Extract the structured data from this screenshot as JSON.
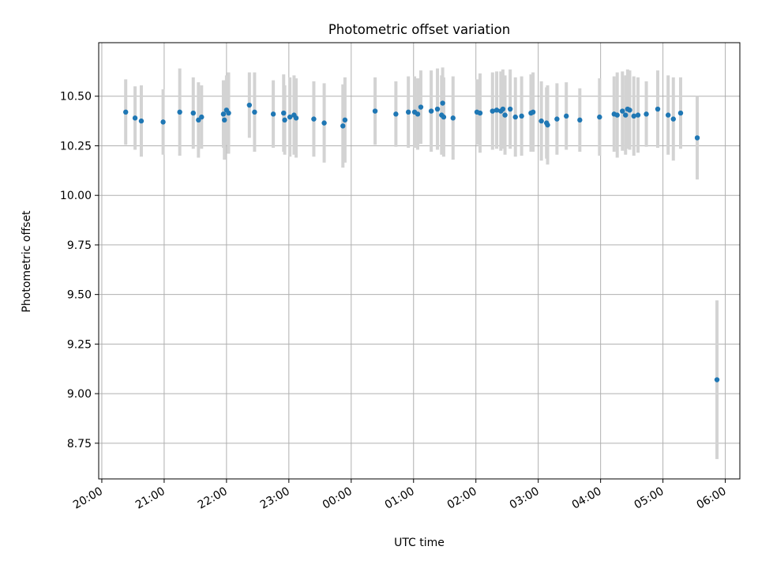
{
  "chart_data": {
    "type": "scatter",
    "title": "Photometric offset variation",
    "xlabel": "UTC time",
    "ylabel": "Photometric offset",
    "xlim": [
      "19:57",
      "06:14"
    ],
    "ylim": [
      8.57,
      10.77
    ],
    "xticks": [
      "20:00",
      "21:00",
      "22:00",
      "23:00",
      "00:00",
      "01:00",
      "02:00",
      "03:00",
      "04:00",
      "05:00",
      "06:00"
    ],
    "yticks": [
      "8.75",
      "9.00",
      "9.25",
      "9.50",
      "9.75",
      "10.00",
      "10.25",
      "10.50"
    ],
    "grid": true,
    "point_color": "#1f77b4",
    "errorbar_color": "#d3d3d3",
    "series": [
      {
        "x": [
          "20:23",
          "20:32",
          "20:38",
          "20:59",
          "21:15",
          "21:28",
          "21:33",
          "21:36",
          "21:57",
          "21:58",
          "22:00",
          "22:02",
          "22:22",
          "22:27",
          "22:45",
          "22:55",
          "22:56",
          "23:01",
          "23:05",
          "23:07",
          "23:24",
          "23:34",
          "23:52",
          "23:54",
          "00:23",
          "00:43",
          "00:55",
          "01:01",
          "01:04",
          "01:07",
          "01:17",
          "01:23",
          "01:27",
          "01:28",
          "01:29",
          "01:38",
          "02:01",
          "02:04",
          "02:16",
          "02:20",
          "02:24",
          "02:26",
          "02:28",
          "02:33",
          "02:38",
          "02:44",
          "02:53",
          "02:55",
          "03:03",
          "03:08",
          "03:09",
          "03:18",
          "03:27",
          "03:40",
          "03:59",
          "04:13",
          "04:16",
          "04:21",
          "04:24",
          "04:26",
          "04:28",
          "04:32",
          "04:36",
          "04:44",
          "04:55",
          "05:05",
          "05:10",
          "05:17",
          "05:33",
          "05:52"
        ],
        "y": [
          10.42,
          10.39,
          10.375,
          10.37,
          10.42,
          10.415,
          10.38,
          10.395,
          10.41,
          10.38,
          10.43,
          10.415,
          10.455,
          10.42,
          10.41,
          10.415,
          10.38,
          10.395,
          10.405,
          10.39,
          10.385,
          10.365,
          10.35,
          10.38,
          10.425,
          10.41,
          10.42,
          10.42,
          10.41,
          10.445,
          10.425,
          10.435,
          10.405,
          10.465,
          10.395,
          10.39,
          10.42,
          10.415,
          10.425,
          10.43,
          10.425,
          10.435,
          10.405,
          10.435,
          10.395,
          10.4,
          10.415,
          10.42,
          10.375,
          10.365,
          10.355,
          10.385,
          10.4,
          10.38,
          10.395,
          10.41,
          10.405,
          10.425,
          10.405,
          10.435,
          10.43,
          10.4,
          10.405,
          10.41,
          10.435,
          10.405,
          10.385,
          10.415,
          10.29,
          9.07
        ],
        "err": [
          0.165,
          0.16,
          0.18,
          0.165,
          0.22,
          0.18,
          0.19,
          0.16,
          0.17,
          0.2,
          0.175,
          0.205,
          0.165,
          0.2,
          0.17,
          0.195,
          0.175,
          0.2,
          0.2,
          0.2,
          0.19,
          0.2,
          0.21,
          0.215,
          0.17,
          0.165,
          0.18,
          0.18,
          0.18,
          0.185,
          0.205,
          0.205,
          0.2,
          0.18,
          0.2,
          0.21,
          0.165,
          0.2,
          0.195,
          0.195,
          0.2,
          0.2,
          0.2,
          0.2,
          0.2,
          0.2,
          0.195,
          0.2,
          0.2,
          0.18,
          0.2,
          0.18,
          0.17,
          0.16,
          0.195,
          0.19,
          0.215,
          0.2,
          0.2,
          0.2,
          0.2,
          0.2,
          0.19,
          0.165,
          0.195,
          0.2,
          0.21,
          0.18,
          0.21,
          0.4
        ]
      }
    ]
  }
}
